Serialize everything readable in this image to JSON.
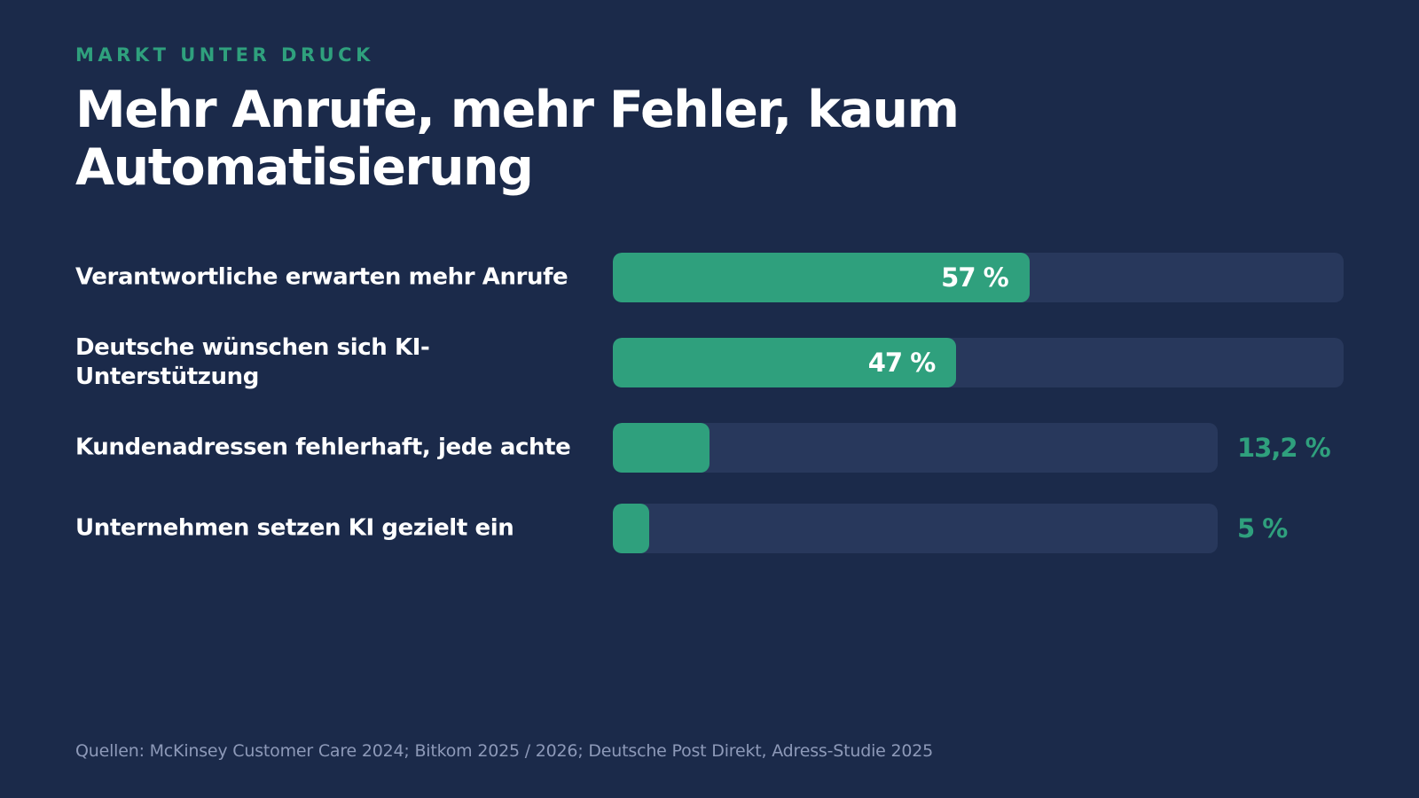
{
  "eyebrow": "MARKT UNTER DRUCK",
  "title": "Mehr Anrufe, mehr Fehler, kaum Automatisierung",
  "source": "Quellen: McKinsey Customer Care 2024; Bitkom 2025 / 2026; Deutsche Post Direkt, Adress-Studie 2025",
  "colors": {
    "background": "#1b2a4a",
    "accent": "#2fa07d",
    "track": "#28385c",
    "text": "#ffffff",
    "muted": "#8d99b8"
  },
  "chart_data": {
    "type": "bar",
    "orientation": "horizontal",
    "xlim": [
      0,
      100
    ],
    "unit": "%",
    "categories": [
      "Verantwortliche erwarten mehr Anrufe",
      "Deutsche wünschen sich KI-Unterstützung",
      "Kundenadressen fehlerhaft, jede achte",
      "Unternehmen setzen KI gezielt ein"
    ],
    "values": [
      57,
      47,
      13.2,
      5
    ],
    "value_labels": [
      "57 %",
      "47 %",
      "13,2 %",
      "5 %"
    ],
    "grid": false,
    "legend": "none"
  }
}
